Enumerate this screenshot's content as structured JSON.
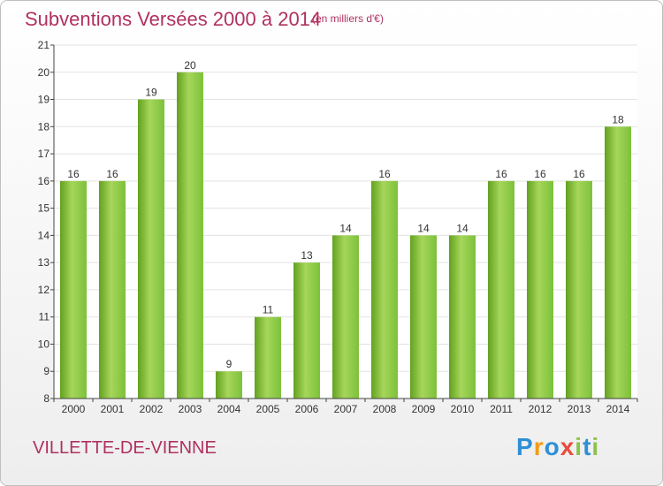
{
  "title": "Subventions Versées 2000 à 2014",
  "subtitle": "(en milliers d'€)",
  "commune": "VILLETTE-DE-VIENNE",
  "logo": {
    "text": "Proxiti",
    "letters": [
      "P",
      "r",
      "o",
      "x",
      "i",
      "t",
      "i"
    ],
    "colors": [
      "#2e8fd6",
      "#f39c12",
      "#2e8fd6",
      "#e74c3c",
      "#8bc34a",
      "#2e8fd6",
      "#8bc34a"
    ]
  },
  "colors": {
    "bar": "#7cc13a",
    "bar_light": "#a6d65a",
    "bar_dark": "#62a11f",
    "title": "#b03060",
    "axis": "#333333"
  },
  "chart_data": {
    "type": "bar",
    "title": "Subventions Versées 2000 à 2014",
    "subtitle": "(en milliers d'€)",
    "xlabel": "",
    "ylabel": "",
    "ylim": [
      8,
      21
    ],
    "yticks": [
      8,
      9,
      10,
      11,
      12,
      13,
      14,
      15,
      16,
      17,
      18,
      19,
      20,
      21
    ],
    "grid": true,
    "categories": [
      "2000",
      "2001",
      "2002",
      "2003",
      "2004",
      "2005",
      "2006",
      "2007",
      "2008",
      "2009",
      "2010",
      "2011",
      "2012",
      "2013",
      "2014"
    ],
    "values": [
      16,
      16,
      19,
      20,
      9,
      11,
      13,
      14,
      16,
      14,
      14,
      16,
      16,
      16,
      18
    ]
  }
}
